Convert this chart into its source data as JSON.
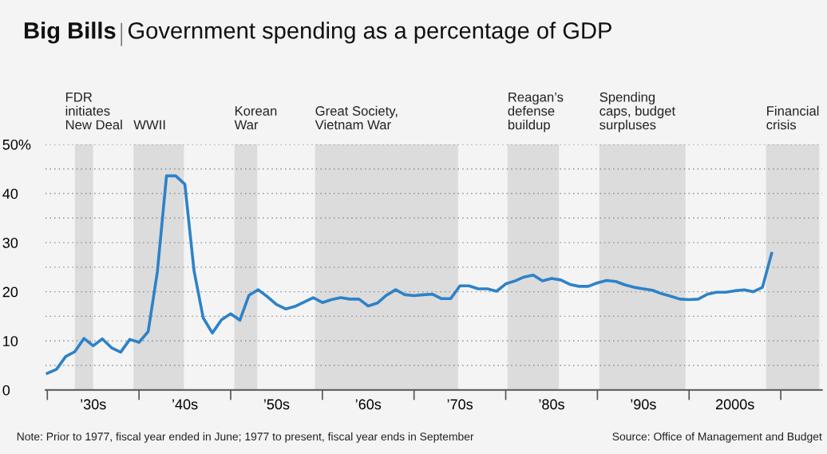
{
  "chart_data": {
    "type": "line",
    "title": "Big Bills",
    "subtitle": "Government spending as a percentage of GDP",
    "categories": [
      null,
      null,
      null,
      null,
      null,
      "’30s",
      null,
      null,
      null,
      null,
      null,
      null,
      null,
      null,
      null,
      "’40s",
      null,
      null,
      null,
      null,
      null,
      null,
      null,
      null,
      null,
      "’50s",
      null,
      null,
      null,
      null,
      null,
      null,
      null,
      null,
      null,
      "’60s",
      null,
      null,
      null,
      null,
      null,
      null,
      null,
      null,
      null,
      "’70s",
      null,
      null,
      null,
      null,
      null,
      null,
      null,
      null,
      null,
      "’80s",
      null,
      null,
      null,
      null,
      null,
      null,
      null,
      null,
      null,
      "’90s",
      null,
      null,
      null,
      null,
      null,
      null,
      null,
      null,
      null,
      "2000s",
      null,
      null,
      null,
      null,
      null,
      null,
      null,
      null,
      null
    ],
    "series": [
      {
        "color": "#2d82c8",
        "values": [
          3.4,
          4.2,
          6.8,
          7.8,
          10.5,
          9.0,
          10.4,
          8.6,
          7.7,
          10.3,
          9.7,
          11.9,
          24.0,
          43.6,
          43.6,
          41.9,
          24.3,
          14.7,
          11.6,
          14.3,
          15.5,
          14.2,
          19.3,
          20.4,
          19.0,
          17.4,
          16.5,
          17.0,
          17.9,
          18.8,
          17.8,
          18.4,
          18.8,
          18.5,
          18.5,
          17.1,
          17.7,
          19.3,
          20.4,
          19.4,
          19.2,
          19.4,
          19.5,
          18.6,
          18.6,
          21.2,
          21.2,
          20.6,
          20.6,
          20.1,
          21.6,
          22.2,
          23.0,
          23.4,
          22.2,
          22.7,
          22.4,
          21.5,
          21.1,
          21.1,
          21.8,
          22.3,
          22.1,
          21.4,
          20.9,
          20.6,
          20.3,
          19.6,
          19.1,
          18.5,
          18.4,
          18.5,
          19.5,
          19.9,
          19.9,
          20.2,
          20.4,
          20.0,
          20.9,
          27.8,
          null,
          null,
          null,
          null,
          null
        ]
      }
    ],
    "ylim": [
      0,
      50
    ],
    "yticks": [
      0,
      {
        "value": 5,
        "label": null
      },
      10,
      {
        "value": 15,
        "label": null
      },
      20,
      {
        "value": 25,
        "label": null
      },
      30,
      {
        "value": 35,
        "label": null
      },
      40,
      {
        "value": 45,
        "label": null
      },
      {
        "value": 50,
        "label": "50%"
      }
    ],
    "grid": "y",
    "marker": "none",
    "line_style": "solid",
    "annotations": [
      "FDR\ninitiates\nNew Deal",
      "WWII",
      "Korean\nWar",
      "Great Society,\nVietnam War",
      "Reagan’s\ndefense\nbuildup",
      "Spending\ncaps, budget\nsurpluses",
      "Financial\ncrisis",
      "Note: Prior to 1977, fiscal year ended in June; 1977 to present, fiscal year ends in September",
      "Source: Office of Management and Budget"
    ]
  }
}
